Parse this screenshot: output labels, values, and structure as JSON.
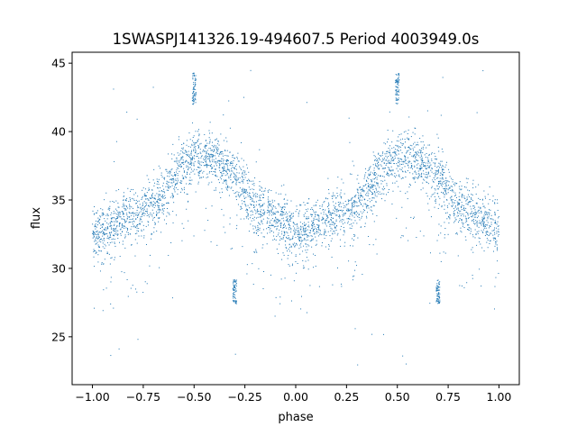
{
  "chart_data": {
    "type": "scatter",
    "title": "1SWASPJ141326.19-494607.5 Period 4003949.0s",
    "xlabel": "phase",
    "ylabel": "flux",
    "xlim": [
      -1.1,
      1.1
    ],
    "ylim": [
      21.5,
      45.8
    ],
    "xticks": [
      -1.0,
      -0.75,
      -0.5,
      -0.25,
      0.0,
      0.25,
      0.5,
      0.75,
      1.0
    ],
    "xtick_labels": [
      "−1.00",
      "−0.75",
      "−0.50",
      "−0.25",
      "0.00",
      "0.25",
      "0.50",
      "0.75",
      "1.00"
    ],
    "yticks": [
      25,
      30,
      35,
      40,
      45
    ],
    "ytick_labels": [
      "25",
      "30",
      "35",
      "40",
      "45"
    ],
    "grid": false,
    "point_color": "#1f77b4",
    "series": [
      {
        "x_range": [
          -1.0,
          1.0
        ],
        "trend": {
          "phase": [
            0.0,
            0.05,
            0.1,
            0.15,
            0.2,
            0.25,
            0.3,
            0.35,
            0.4,
            0.45,
            0.5,
            0.55,
            0.6,
            0.65,
            0.7,
            0.75,
            0.8,
            0.85,
            0.9,
            0.95,
            1.0
          ],
          "flux": [
            32.5,
            32.6,
            33.0,
            33.5,
            33.8,
            34.2,
            34.8,
            35.5,
            36.5,
            37.5,
            38.0,
            38.2,
            37.8,
            37.2,
            36.8,
            35.5,
            34.5,
            34.0,
            33.6,
            33.3,
            32.5
          ]
        },
        "scatter_sd": 1.0,
        "features": [
          {
            "phase": 0.5,
            "flux_range": [
              42.0,
              44.3
            ]
          },
          {
            "phase": -0.5,
            "flux_range": [
              42.0,
              44.3
            ]
          },
          {
            "phase": 0.7,
            "flux_range": [
              27.4,
              29.2
            ]
          },
          {
            "phase": -0.3,
            "flux_range": [
              27.4,
              29.2
            ]
          }
        ]
      }
    ]
  }
}
